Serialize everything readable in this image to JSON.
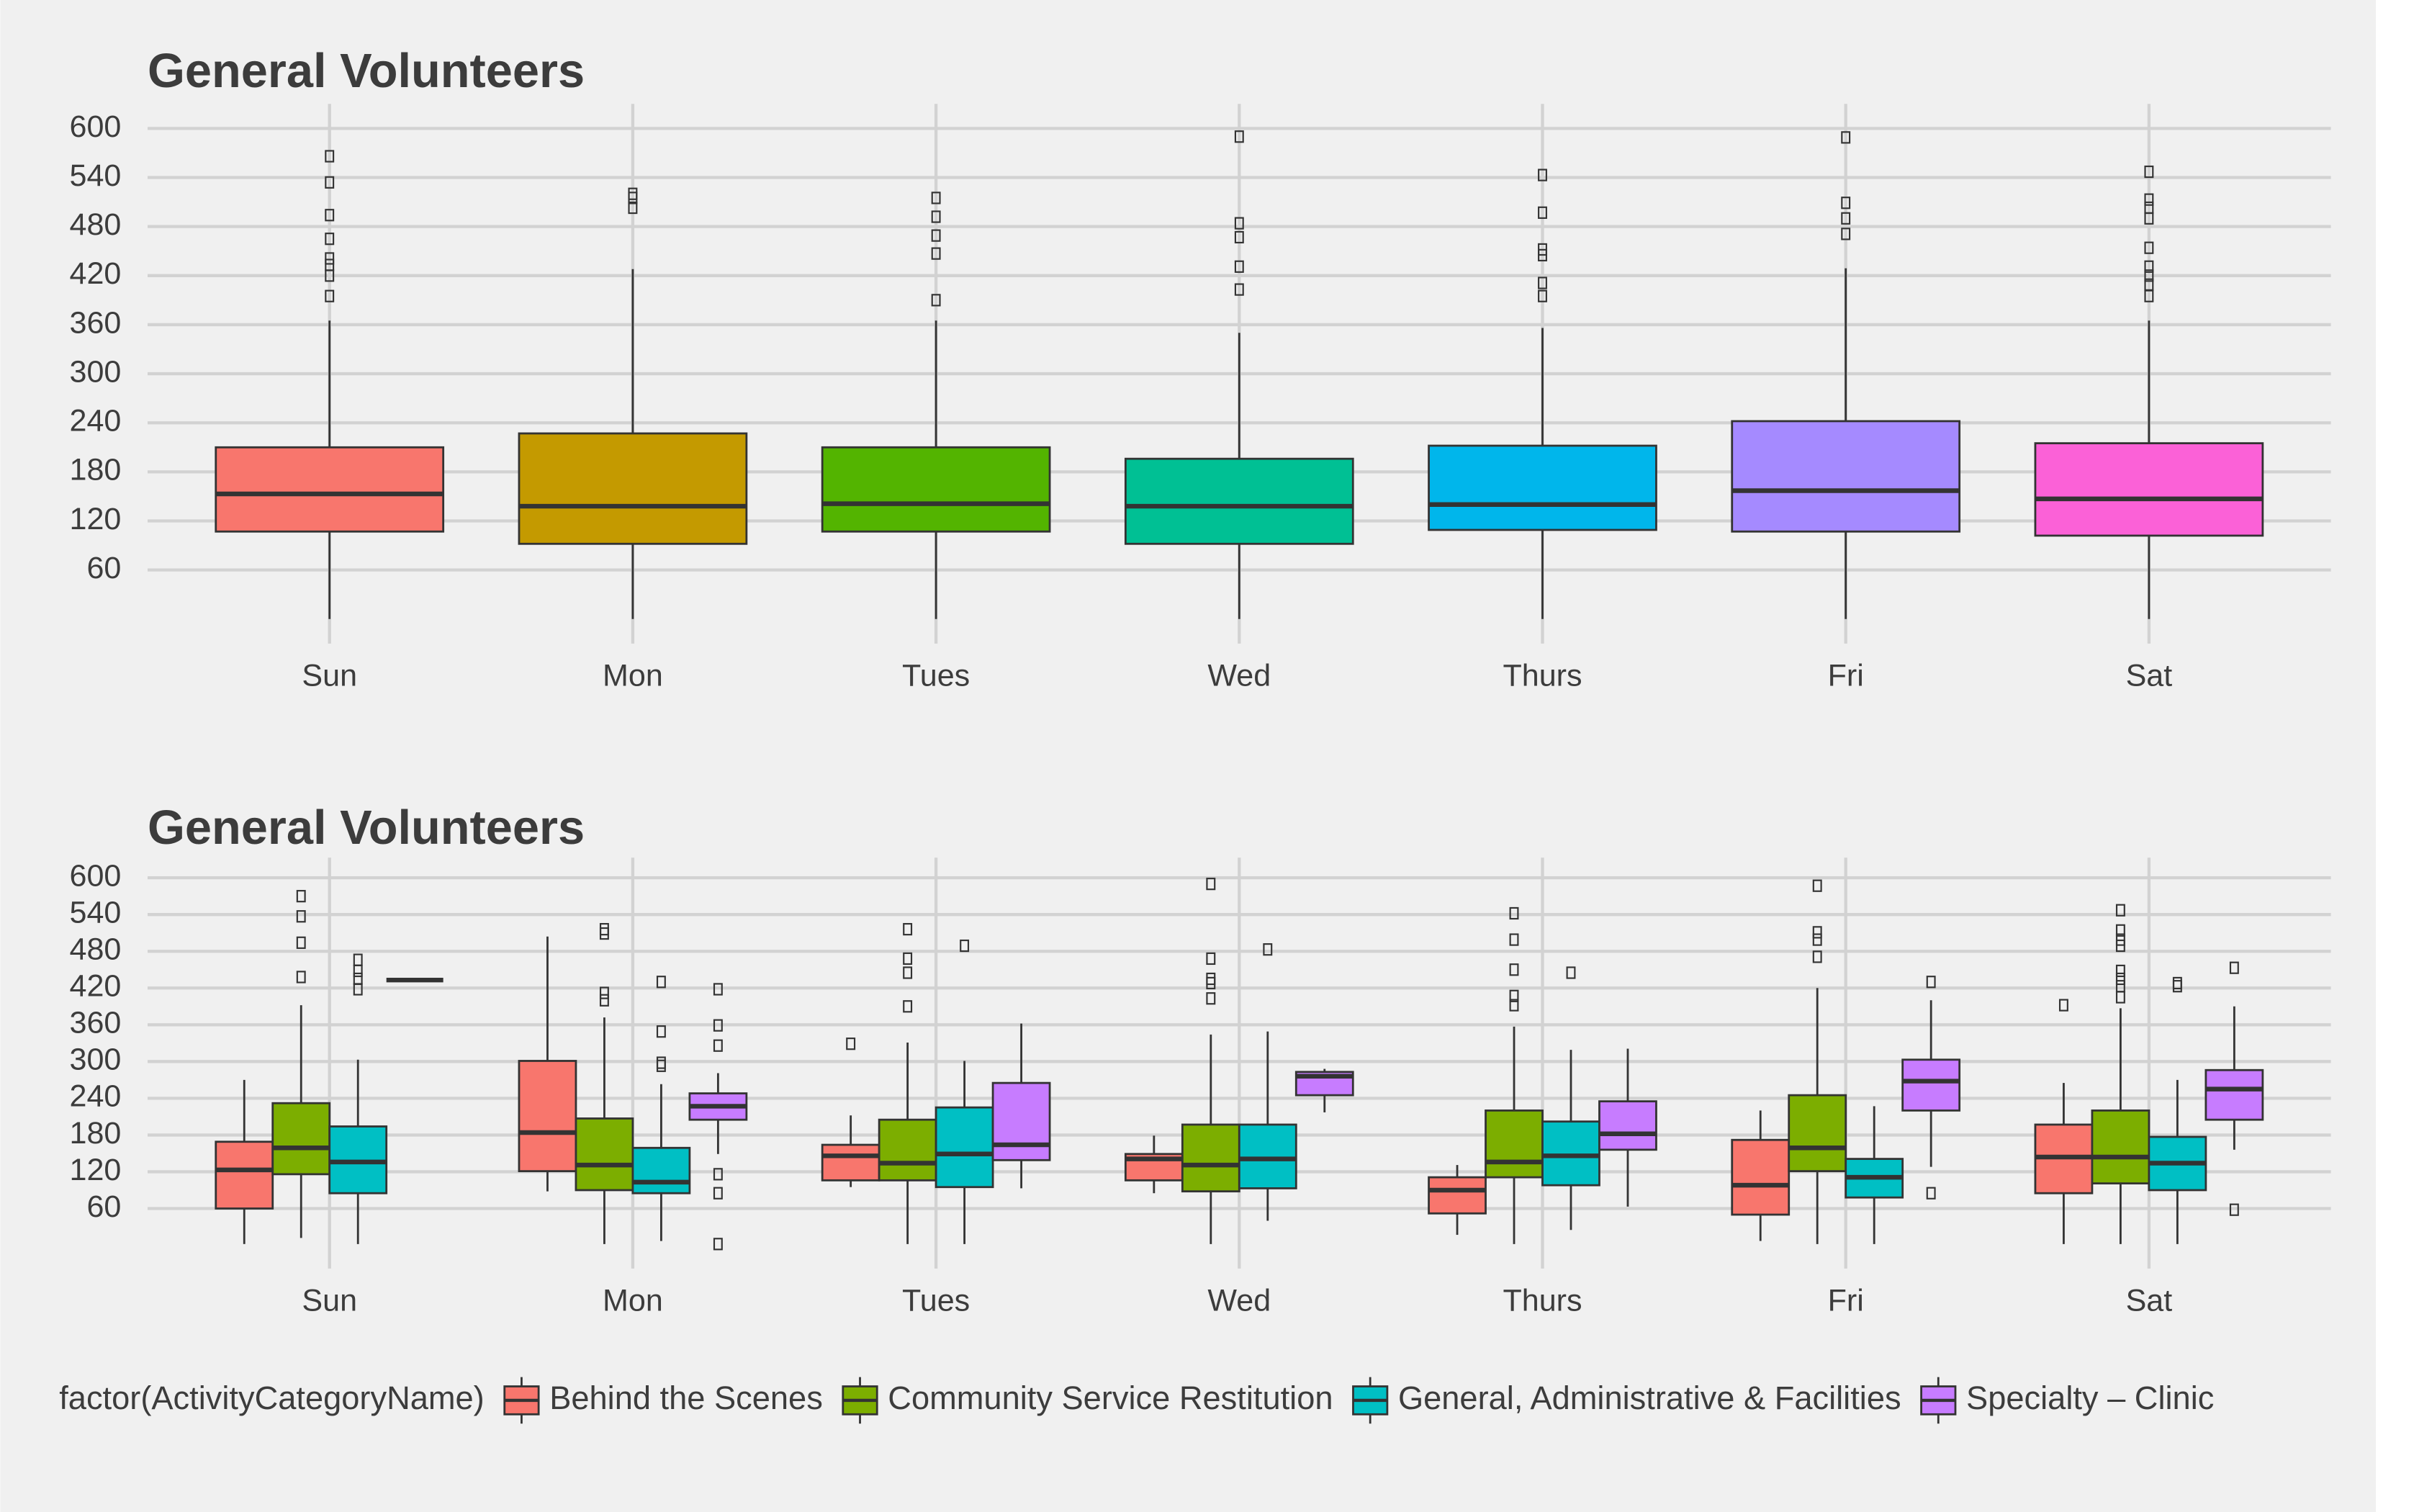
{
  "chart_data": [
    {
      "type": "box",
      "title": "General Volunteers",
      "categories": [
        "Sun",
        "Mon",
        "Tues",
        "Wed",
        "Thurs",
        "Fri",
        "Sat"
      ],
      "colors": [
        "#F8766D",
        "#C49A00",
        "#53B400",
        "#00C094",
        "#00B6EB",
        "#A58AFF",
        "#FB61D7"
      ],
      "ylim": [
        -30,
        630
      ],
      "yticks": [
        60,
        120,
        180,
        240,
        300,
        360,
        420,
        480,
        540,
        600
      ],
      "grid": true,
      "boxes": [
        {
          "low": 0,
          "q1": 107,
          "median": 153,
          "q3": 210,
          "high": 365,
          "outliers": [
            566,
            534,
            494,
            465,
            441,
            433,
            420,
            395
          ]
        },
        {
          "low": 0,
          "q1": 92,
          "median": 138,
          "q3": 227,
          "high": 428,
          "outliers": [
            520,
            515,
            503
          ]
        },
        {
          "low": 0,
          "q1": 107,
          "median": 141,
          "q3": 210,
          "high": 365,
          "outliers": [
            515,
            492,
            469,
            447,
            390
          ]
        },
        {
          "low": 0,
          "q1": 92,
          "median": 138,
          "q3": 196,
          "high": 350,
          "outliers": [
            590,
            484,
            467,
            431,
            403
          ]
        },
        {
          "low": 0,
          "q1": 109,
          "median": 140,
          "q3": 212,
          "high": 356,
          "outliers": [
            543,
            497,
            452,
            445,
            411,
            395
          ]
        },
        {
          "low": 0,
          "q1": 107,
          "median": 157,
          "q3": 242,
          "high": 429,
          "outliers": [
            589,
            509,
            490,
            471
          ]
        },
        {
          "low": 0,
          "q1": 102,
          "median": 147,
          "q3": 215,
          "high": 365,
          "outliers": [
            547,
            513,
            503,
            490,
            454,
            431,
            420,
            409,
            395
          ]
        }
      ]
    },
    {
      "type": "grouped-box",
      "title": "General Volunteers",
      "categories": [
        "Sun",
        "Mon",
        "Tues",
        "Wed",
        "Thurs",
        "Fri",
        "Sat"
      ],
      "ylim": [
        -38,
        633
      ],
      "yticks": [
        60,
        120,
        180,
        240,
        300,
        360,
        420,
        480,
        540,
        600
      ],
      "grid": true,
      "legend_title": "factor(ActivityCategoryName)",
      "legend_position": "bottom",
      "series": [
        {
          "name": "Behind the Scenes",
          "color": "#F8766D",
          "boxes": [
            {
              "low": 2,
              "q1": 60,
              "median": 123,
              "q3": 169,
              "high": 270,
              "outliers": []
            },
            {
              "low": 88,
              "q1": 121,
              "median": 184,
              "q3": 301,
              "high": 504,
              "outliers": []
            },
            {
              "low": 95,
              "q1": 106,
              "median": 146,
              "q3": 164,
              "high": 212,
              "outliers": [
                329
              ]
            },
            {
              "low": 85,
              "q1": 106,
              "median": 141,
              "q3": 149,
              "high": 179,
              "outliers": []
            },
            {
              "low": 17,
              "q1": 52,
              "median": 90,
              "q3": 111,
              "high": 131,
              "outliers": []
            },
            {
              "low": 7,
              "q1": 50,
              "median": 98,
              "q3": 172,
              "high": 220,
              "outliers": []
            },
            {
              "low": 2,
              "q1": 85,
              "median": 144,
              "q3": 197,
              "high": 265,
              "outliers": [
                392
              ]
            }
          ]
        },
        {
          "name": "Community Service Restitution",
          "color": "#7CAE00",
          "boxes": [
            {
              "low": 12,
              "q1": 116,
              "median": 159,
              "q3": 232,
              "high": 392,
              "outliers": [
                570,
                537,
                494,
                438
              ]
            },
            {
              "low": 2,
              "q1": 90,
              "median": 131,
              "q3": 207,
              "high": 372,
              "outliers": [
                516,
                509,
                412,
                400
              ]
            },
            {
              "low": 2,
              "q1": 106,
              "median": 134,
              "q3": 205,
              "high": 331,
              "outliers": [
                516,
                468,
                445,
                390
              ]
            },
            {
              "low": 2,
              "q1": 88,
              "median": 131,
              "q3": 197,
              "high": 344,
              "outliers": [
                590,
                468,
                435,
                428,
                403
              ]
            },
            {
              "low": 2,
              "q1": 111,
              "median": 136,
              "q3": 220,
              "high": 357,
              "outliers": [
                542,
                499,
                450,
                407,
                392
              ]
            },
            {
              "low": 2,
              "q1": 121,
              "median": 159,
              "q3": 245,
              "high": 420,
              "outliers": [
                587,
                511,
                499,
                471
              ]
            },
            {
              "low": 2,
              "q1": 101,
              "median": 144,
              "q3": 220,
              "high": 387,
              "outliers": [
                547,
                514,
                499,
                489,
                448,
                435,
                423,
                405
              ]
            }
          ]
        },
        {
          "name": "General, Administrative & Facilities",
          "color": "#00BFC4",
          "boxes": [
            {
              "low": 2,
              "q1": 85,
              "median": 136,
              "q3": 194,
              "high": 303,
              "outliers": [
                466,
                448,
                435,
                418
              ]
            },
            {
              "low": 7,
              "q1": 85,
              "median": 103,
              "q3": 159,
              "high": 263,
              "outliers": [
                430,
                349,
                298,
                293
              ]
            },
            {
              "low": 2,
              "q1": 95,
              "median": 149,
              "q3": 225,
              "high": 301,
              "outliers": [
                489
              ]
            },
            {
              "low": 40,
              "q1": 93,
              "median": 141,
              "q3": 197,
              "high": 349,
              "outliers": [
                483
              ]
            },
            {
              "low": 25,
              "q1": 98,
              "median": 146,
              "q3": 202,
              "high": 319,
              "outliers": [
                445
              ]
            },
            {
              "low": 2,
              "q1": 78,
              "median": 111,
              "q3": 141,
              "high": 227,
              "outliers": []
            },
            {
              "low": 2,
              "q1": 90,
              "median": 134,
              "q3": 177,
              "high": 270,
              "outliers": [
                428,
                423
              ]
            }
          ]
        },
        {
          "name": "Specialty – Clinic",
          "color": "#C77CFF",
          "boxes": [
            {
              "low": 433,
              "q1": 433,
              "median": 433,
              "q3": 433,
              "high": 433,
              "outliers": []
            },
            {
              "low": 149,
              "q1": 205,
              "median": 227,
              "q3": 248,
              "high": 281,
              "outliers": [
                418,
                359,
                326,
                116,
                85,
                2
              ]
            },
            {
              "low": 93,
              "q1": 139,
              "median": 164,
              "q3": 265,
              "high": 362,
              "outliers": []
            },
            {
              "low": 217,
              "q1": 245,
              "median": 276,
              "q3": 283,
              "high": 288,
              "outliers": []
            },
            {
              "low": 63,
              "q1": 156,
              "median": 182,
              "q3": 235,
              "high": 321,
              "outliers": []
            },
            {
              "low": 128,
              "q1": 220,
              "median": 268,
              "q3": 303,
              "high": 400,
              "outliers": [
                430,
                85
              ]
            },
            {
              "low": 156,
              "q1": 205,
              "median": 255,
              "q3": 286,
              "high": 390,
              "outliers": [
                453,
                58
              ]
            }
          ]
        }
      ]
    }
  ]
}
